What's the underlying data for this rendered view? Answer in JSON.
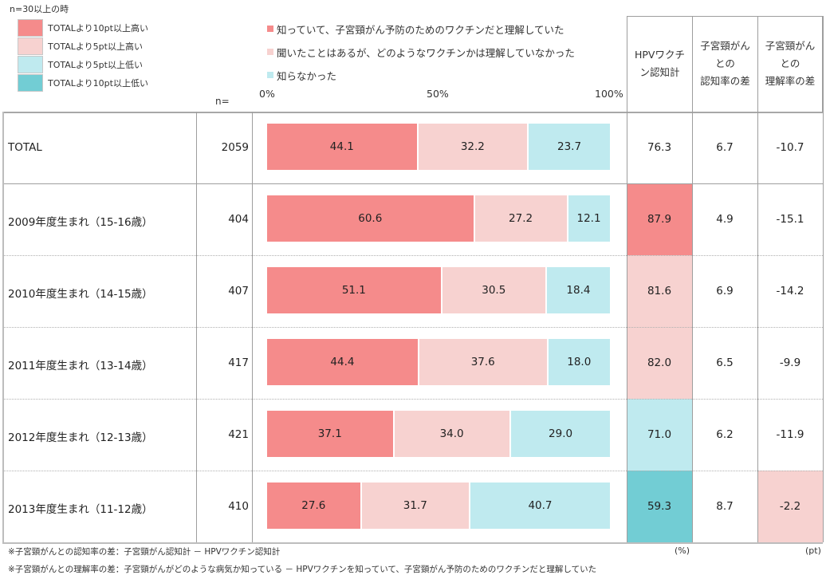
{
  "colors": {
    "high10": "#f58b8b",
    "high5": "#f7d2d0",
    "low5": "#bfeaef",
    "low10": "#72cdd4",
    "seg_understood": "#f58b8b",
    "seg_heard": "#f7d2d0",
    "seg_unknown": "#bfeaef",
    "border": "#9e9e9e"
  },
  "color_key": {
    "title": "n=30以上の時",
    "items": [
      {
        "label": "TOTALより10pt以上高い",
        "color": "#f58b8b"
      },
      {
        "label": "TOTALより5pt以上高い",
        "color": "#f7d2d0"
      },
      {
        "label": "TOTALより5pt以上低い",
        "color": "#bfeaef"
      },
      {
        "label": "TOTALより10pt以上低い",
        "color": "#72cdd4"
      }
    ]
  },
  "headers": {
    "n": "n=",
    "awareness": "HPVワクチン認知計",
    "awareness_lines": [
      "HPVワクチ",
      "ン認知計"
    ],
    "diff_recognition_lines": [
      "子宮頸がん",
      "との",
      "認知率の差"
    ],
    "diff_understanding_lines": [
      "子宮頸がん",
      "との",
      "理解率の差"
    ],
    "unit_percent": "(%)",
    "unit_pt": "(pt)"
  },
  "chart_data": {
    "type": "bar",
    "stacked": true,
    "orientation": "horizontal",
    "title": "",
    "xlabel": "",
    "ylabel": "",
    "xlim": [
      0,
      100
    ],
    "x_ticks": [
      "0%",
      "50%",
      "100%"
    ],
    "legend_position": "top",
    "categories": [
      "TOTAL",
      "2009年度生まれ（15-16歳）",
      "2010年度生まれ（14-15歳）",
      "2011年度生まれ（13-14歳）",
      "2012年度生まれ（12-13歳）",
      "2013年度生まれ（11-12歳）"
    ],
    "n": [
      2059,
      404,
      407,
      417,
      421,
      410
    ],
    "series": [
      {
        "name": "知っていて、子宮頸がん予防のためのワクチンだと理解していた",
        "color": "#f58b8b",
        "values": [
          44.1,
          60.6,
          51.1,
          44.4,
          37.1,
          27.6
        ]
      },
      {
        "name": "聞いたことはあるが、どのようなワクチンかは理解していなかった",
        "color": "#f7d2d0",
        "values": [
          32.2,
          27.2,
          30.5,
          37.6,
          34.0,
          31.7
        ]
      },
      {
        "name": "知らなかった",
        "color": "#bfeaef",
        "values": [
          23.7,
          12.1,
          18.4,
          18.0,
          29.0,
          40.7
        ]
      }
    ],
    "table_columns": {
      "awareness_total": [
        "76.3",
        "87.9",
        "81.6",
        "82.0",
        "71.0",
        "59.3"
      ],
      "diff_recognition": [
        "6.7",
        "4.9",
        "6.9",
        "6.5",
        "6.2",
        "8.7"
      ],
      "diff_understanding": [
        "-10.7",
        "-15.1",
        "-14.2",
        "-9.9",
        "-11.9",
        "-2.2"
      ]
    },
    "highlights": {
      "awareness_total": [
        "none",
        "high10",
        "high5",
        "high5",
        "low5",
        "low10"
      ],
      "diff_recognition": [
        "none",
        "none",
        "none",
        "none",
        "none",
        "none"
      ],
      "diff_understanding": [
        "none",
        "none",
        "none",
        "none",
        "none",
        "high5"
      ]
    }
  },
  "footnotes": [
    "※子宮頸がんとの認知率の差：子宮頸がん認知計 － HPVワクチン認知計",
    "※子宮頸がんとの理解率の差：子宮頸がんがどのような病気か知っている － HPVワクチンを知っていて、子宮頸がん予防のためのワクチンだと理解していた"
  ]
}
